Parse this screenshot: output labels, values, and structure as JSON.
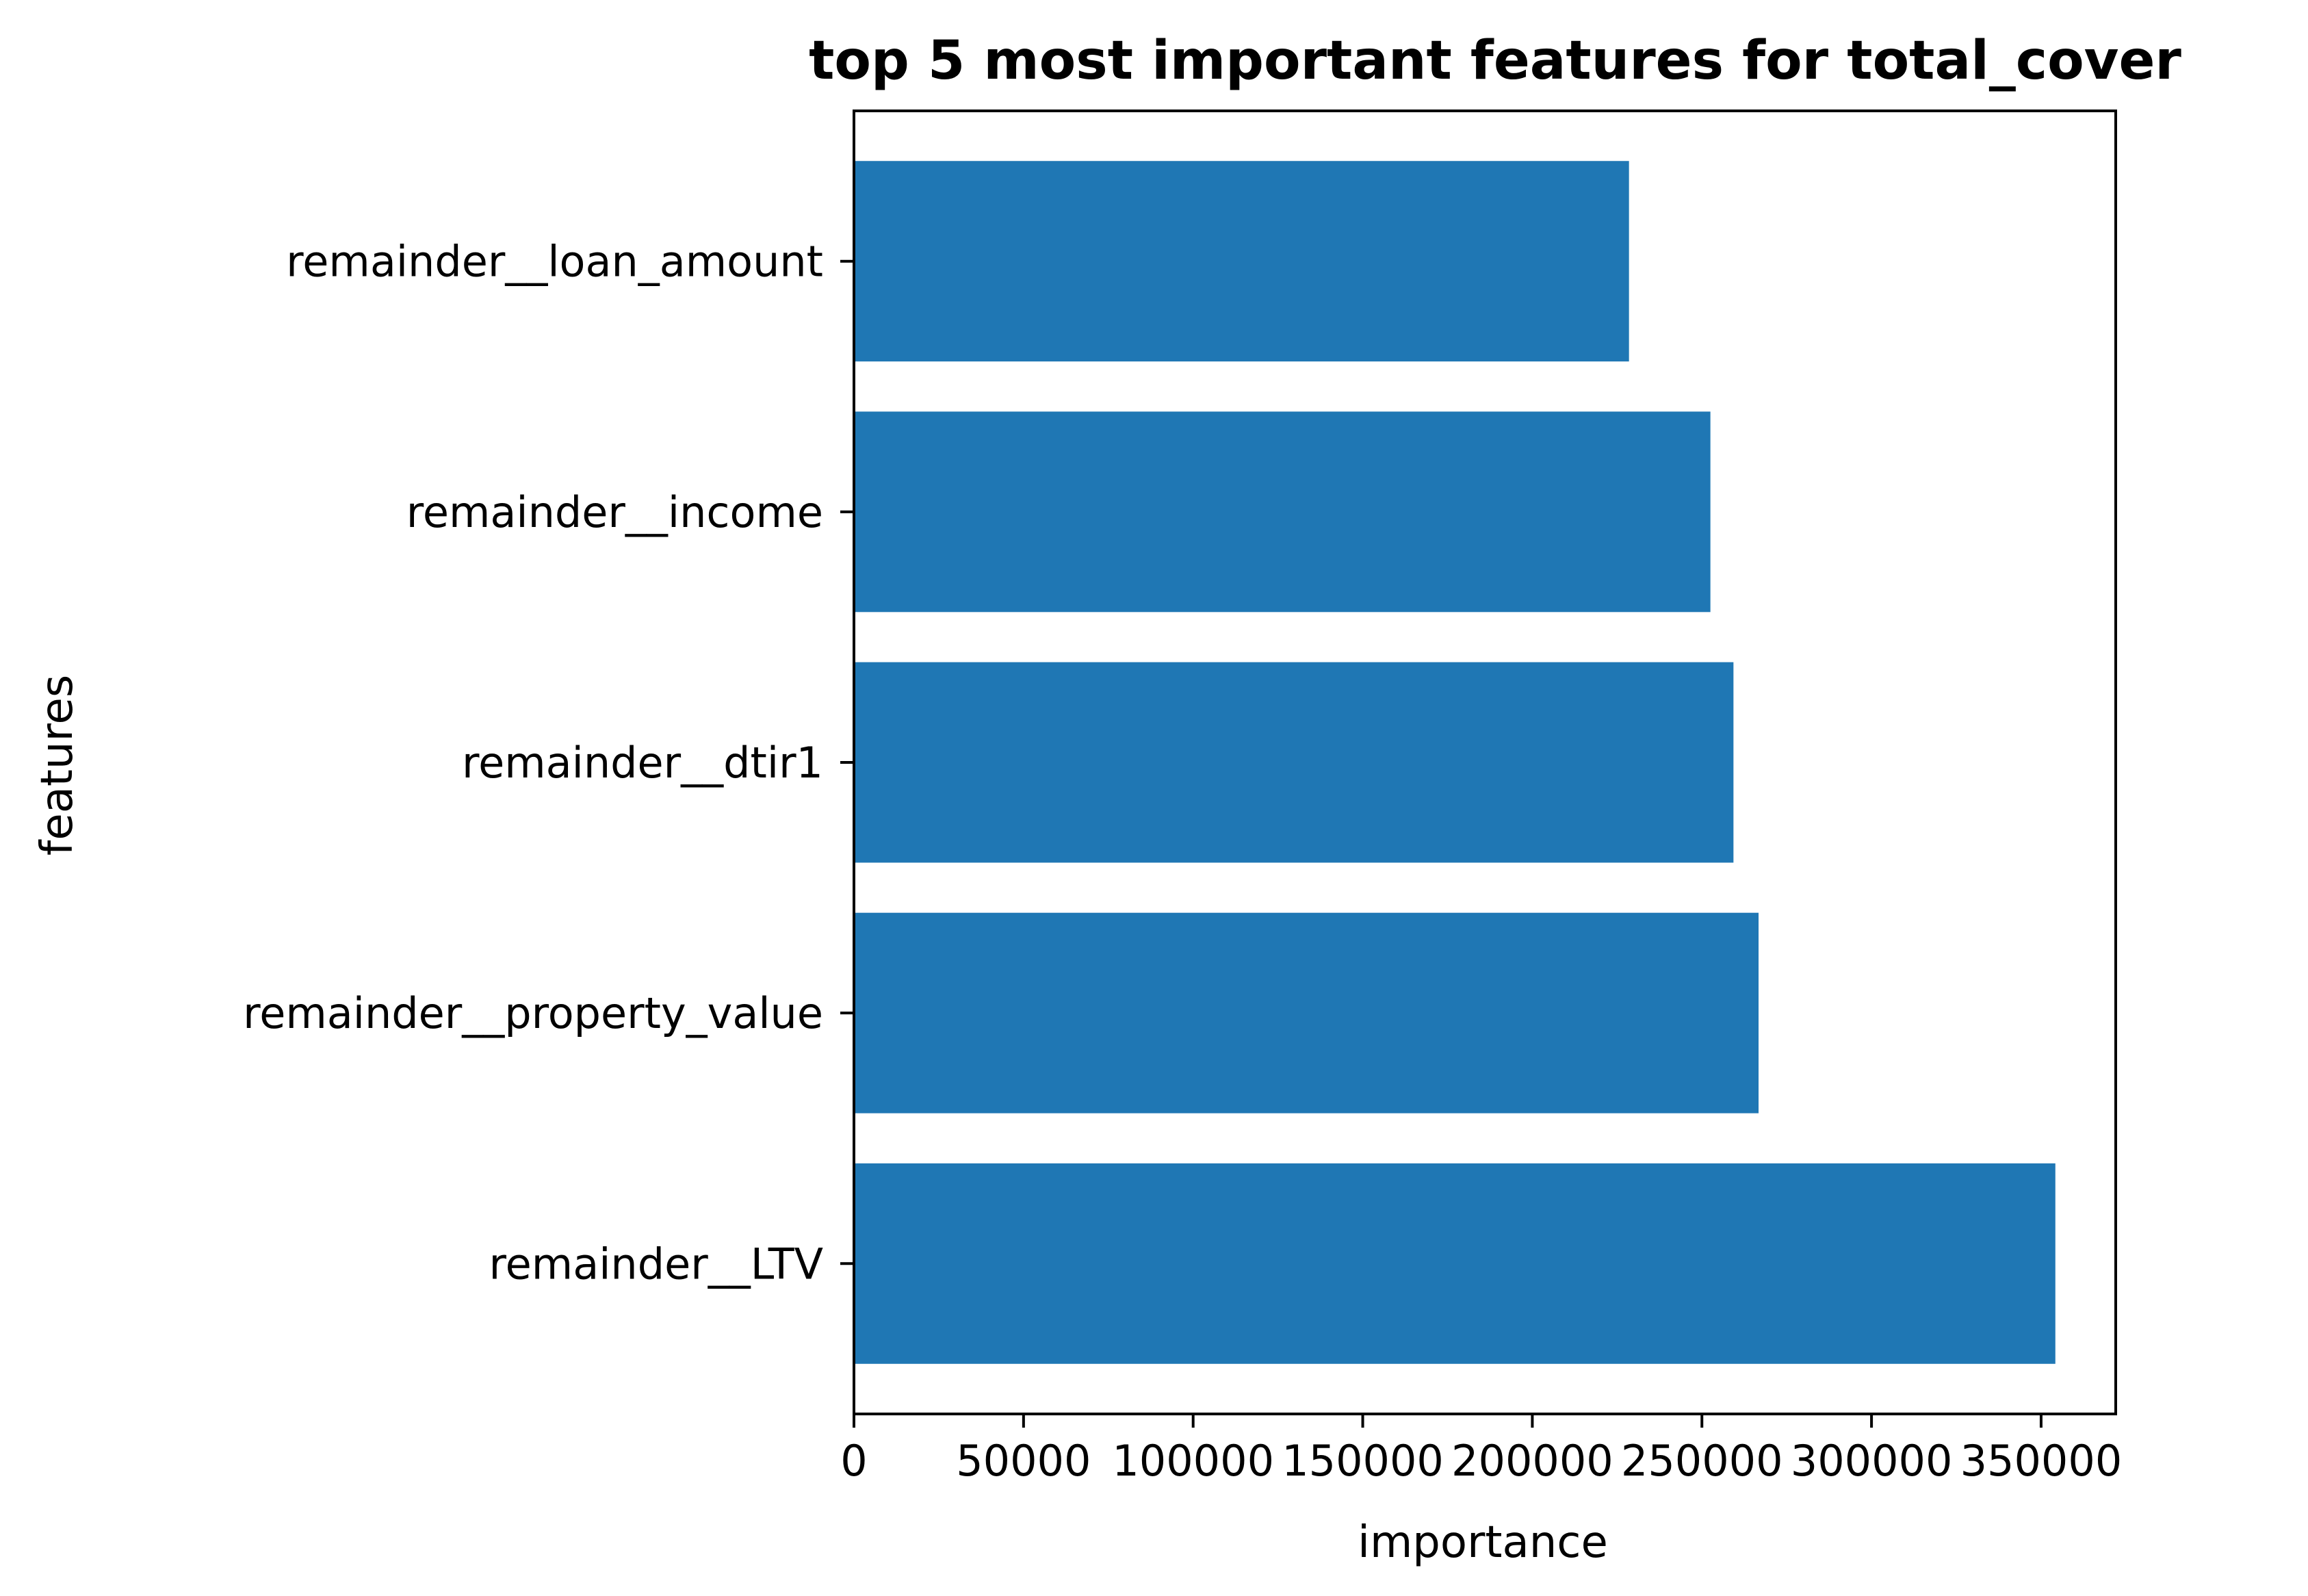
{
  "chart_data": {
    "type": "bar",
    "orientation": "horizontal",
    "title": "top 5 most important features for total_cover",
    "xlabel": "importance",
    "ylabel": "features",
    "categories": [
      "remainder__loan_amount",
      "remainder__income",
      "remainder__dtir1",
      "remainder__property_value",
      "remainder__LTV"
    ],
    "values": [
      228500,
      252500,
      259300,
      266700,
      354200
    ],
    "xlim": [
      0,
      372000
    ],
    "xticks": [
      0,
      50000,
      100000,
      150000,
      200000,
      250000,
      300000,
      350000
    ],
    "xtick_labels": [
      "0",
      "50000",
      "100000",
      "150000",
      "200000",
      "250000",
      "300000",
      "350000"
    ],
    "bar_color": "#1f77b4",
    "grid": false,
    "legend": "none"
  }
}
